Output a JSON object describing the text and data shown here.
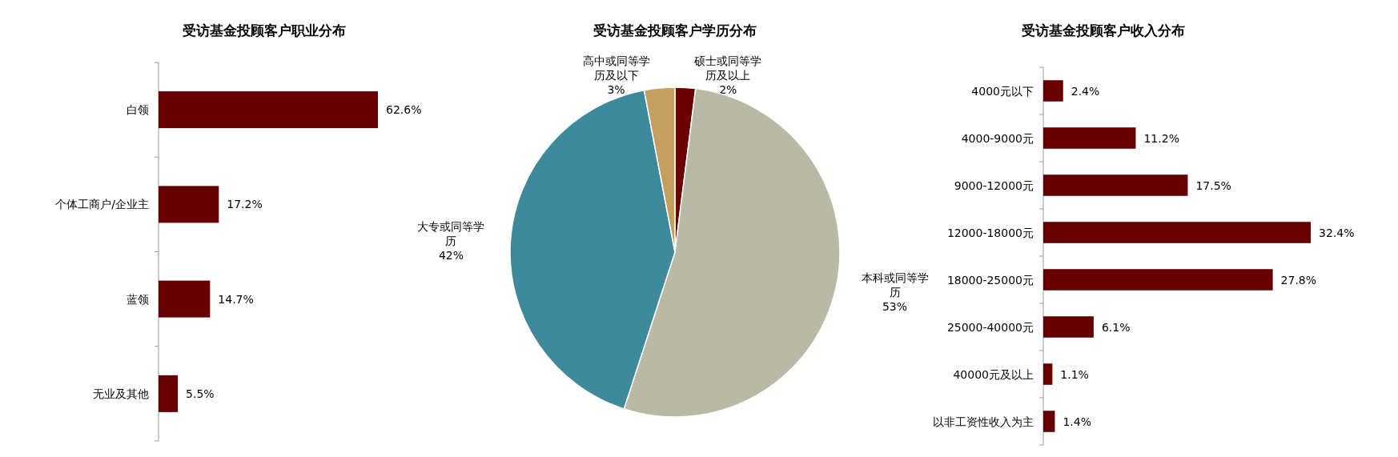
{
  "chart_data": [
    {
      "type": "bar",
      "orientation": "horizontal",
      "title": "受访基金投顾客户职业分布",
      "categories": [
        "白领",
        "个体工商户/企业主",
        "蓝领",
        "无业及其他"
      ],
      "values": [
        62.6,
        17.2,
        14.7,
        5.5
      ],
      "value_labels": [
        "62.6%",
        "17.2%",
        "14.7%",
        "5.5%"
      ],
      "color": "#660000",
      "legend": false
    },
    {
      "type": "pie",
      "title": "受访基金投顾客户学历分布",
      "categories": [
        "硕士或同等学历及以上",
        "本科或同等学历",
        "大专或同等学历",
        "高中或同等学历及以下"
      ],
      "values": [
        2,
        53,
        42,
        3
      ],
      "value_labels": [
        "2%",
        "53%",
        "42%",
        "3%"
      ],
      "colors": [
        "#6b0000",
        "#b9b9a6",
        "#3e8a9c",
        "#c4a060"
      ],
      "legend": false
    },
    {
      "type": "bar",
      "orientation": "horizontal",
      "title": "受访基金投顾客户收入分布",
      "categories": [
        "4000元以下",
        "4000-9000元",
        "9000-12000元",
        "12000-18000元",
        "18000-25000元",
        "25000-40000元",
        "40000元及以上",
        "以非工资性收入为主"
      ],
      "values": [
        2.4,
        11.2,
        17.5,
        32.4,
        27.8,
        6.1,
        1.1,
        1.4
      ],
      "value_labels": [
        "2.4%",
        "11.2%",
        "17.5%",
        "32.4%",
        "27.8%",
        "6.1%",
        "1.1%",
        "1.4%"
      ],
      "color": "#660000",
      "legend": false
    }
  ]
}
